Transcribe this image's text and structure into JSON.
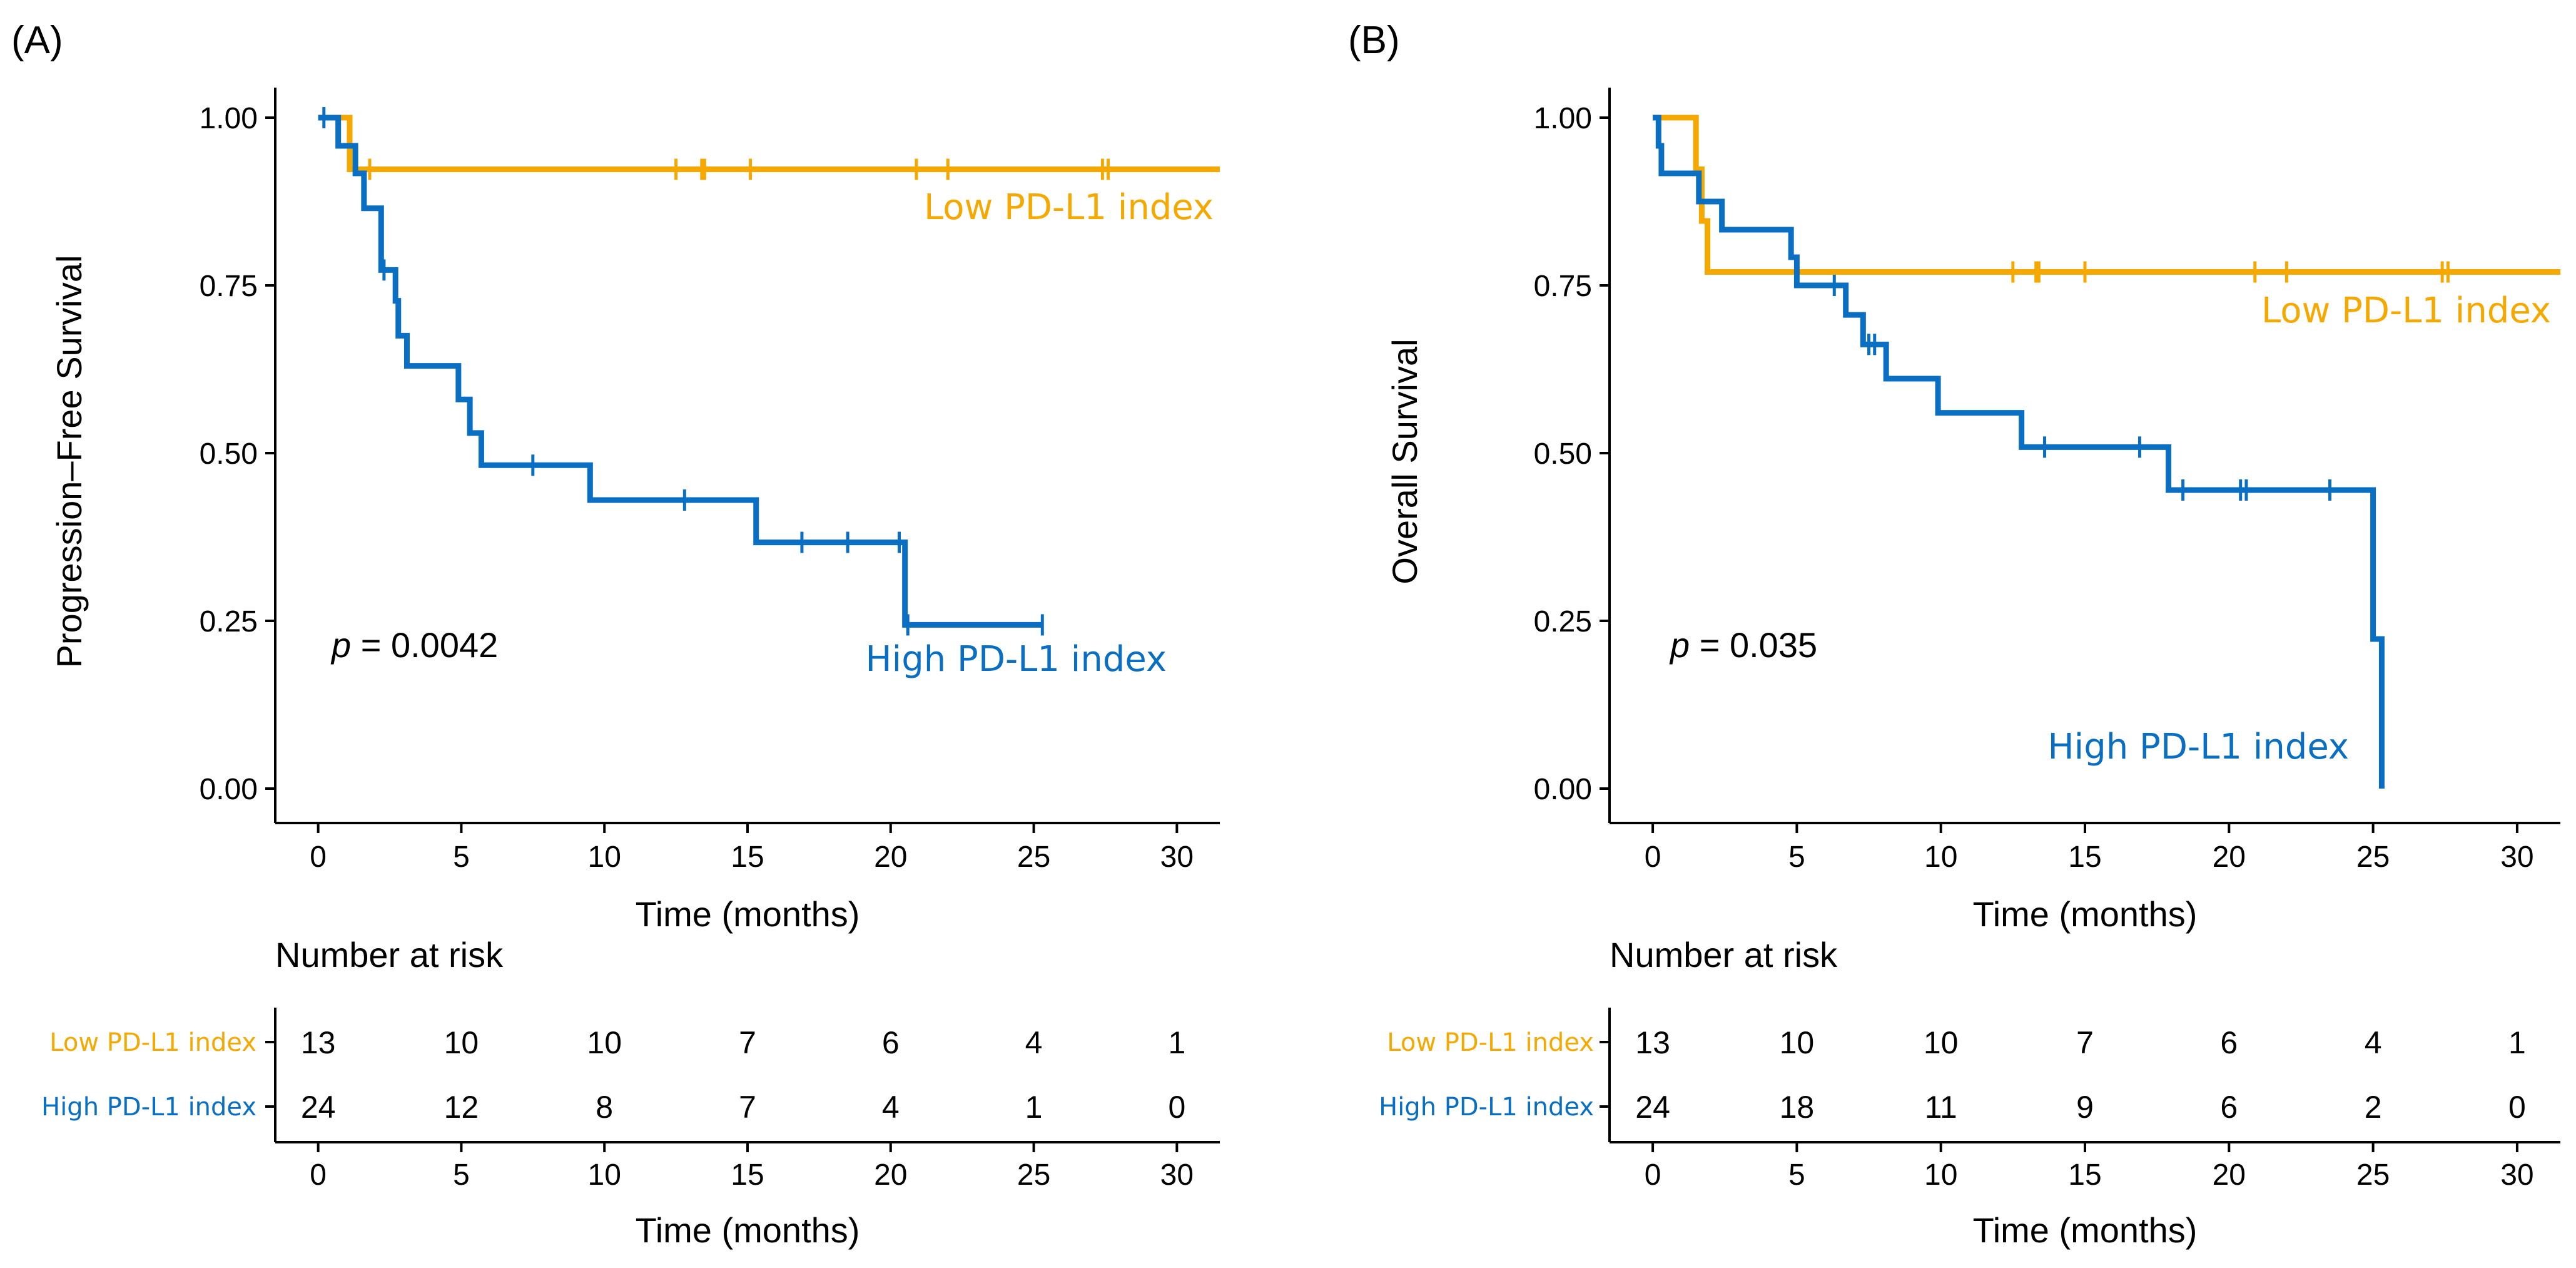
{
  "colors": {
    "low": "#F5A800",
    "high": "#0A6FC2",
    "axis": "#000000"
  },
  "chart_data": [
    {
      "type": "line",
      "subtype": "kaplan-meier",
      "panel_label": "(A)",
      "ylabel": "Progression–Free Survival",
      "xlabel": "Time (months)",
      "xlim": [
        -1.5,
        31.5
      ],
      "ylim": [
        0,
        1
      ],
      "x_ticks": [
        0,
        5,
        10,
        15,
        20,
        25,
        30
      ],
      "x_tick_labels": [
        "0",
        "5",
        "10",
        "15",
        "20",
        "25",
        "30"
      ],
      "y_ticks": [
        0,
        0.25,
        0.5,
        0.75,
        1
      ],
      "y_tick_labels": [
        "0.00",
        "0.25",
        "0.50",
        "0.75",
        "1.00"
      ],
      "p_label": "p",
      "p_value": " = 0.0042",
      "series": [
        {
          "name": "Low PD-L1 index",
          "color_key": "low",
          "steps": [
            [
              0,
              1.0
            ],
            [
              1.1,
              0.923
            ],
            [
              31.5,
              0.923
            ]
          ],
          "censor_times": [
            1.8,
            12.5,
            13.4,
            13.5,
            15.1,
            20.9,
            22.0,
            27.4,
            27.6
          ]
        },
        {
          "name": "High PD-L1 index",
          "color_key": "high",
          "steps": [
            [
              0,
              1.0
            ],
            [
              0.7,
              0.958
            ],
            [
              1.3,
              0.917
            ],
            [
              1.6,
              0.865
            ],
            [
              2.2,
              0.773
            ],
            [
              2.7,
              0.727
            ],
            [
              2.8,
              0.675
            ],
            [
              3.1,
              0.63
            ],
            [
              4.9,
              0.58
            ],
            [
              5.3,
              0.53
            ],
            [
              5.7,
              0.482
            ],
            [
              9.5,
              0.43
            ],
            [
              15.3,
              0.367
            ],
            [
              20.5,
              0.244
            ],
            [
              25.3,
              0.244
            ]
          ],
          "censor_times": [
            0.2,
            2.3,
            7.5,
            12.8,
            16.9,
            18.5,
            20.3,
            20.6,
            25.3
          ]
        }
      ],
      "annotations": [
        {
          "text": "Low PD-L1 index",
          "series": "Low PD-L1 index"
        },
        {
          "text": "High PD-L1 index",
          "series": "High PD-L1 index"
        }
      ],
      "risk_table": {
        "title": "Number at risk",
        "xlabel": "Time (months)",
        "times": [
          0,
          5,
          10,
          15,
          20,
          25,
          30
        ],
        "rows": [
          {
            "label": "Low PD-L1 index",
            "color_key": "low",
            "values": [
              "13",
              "10",
              "10",
              "7",
              "6",
              "4",
              "1"
            ]
          },
          {
            "label": "High PD-L1 index",
            "color_key": "high",
            "values": [
              "24",
              "12",
              "8",
              "7",
              "4",
              "1",
              "0"
            ]
          }
        ]
      }
    },
    {
      "type": "line",
      "subtype": "kaplan-meier",
      "panel_label": "(B)",
      "ylabel": "Overall Survival",
      "xlabel": "Time (months)",
      "xlim": [
        -1.5,
        31.5
      ],
      "ylim": [
        0,
        1
      ],
      "x_ticks": [
        0,
        5,
        10,
        15,
        20,
        25,
        30
      ],
      "x_tick_labels": [
        "0",
        "5",
        "10",
        "15",
        "20",
        "25",
        "30"
      ],
      "y_ticks": [
        0,
        0.25,
        0.5,
        0.75,
        1
      ],
      "y_tick_labels": [
        "0.00",
        "0.25",
        "0.50",
        "0.75",
        "1.00"
      ],
      "p_label": "p",
      "p_value": " = 0.035",
      "series": [
        {
          "name": "Low PD-L1 index",
          "color_key": "low",
          "steps": [
            [
              0,
              1.0
            ],
            [
              1.5,
              0.923
            ],
            [
              1.7,
              0.846
            ],
            [
              1.9,
              0.77
            ],
            [
              31.5,
              0.77
            ]
          ],
          "censor_times": [
            12.5,
            13.3,
            13.4,
            15.0,
            20.9,
            22.0,
            27.4,
            27.6
          ]
        },
        {
          "name": "High PD-L1 index",
          "color_key": "high",
          "steps": [
            [
              0,
              1.0
            ],
            [
              0.2,
              0.958
            ],
            [
              0.3,
              0.917
            ],
            [
              1.6,
              0.875
            ],
            [
              2.4,
              0.833
            ],
            [
              4.8,
              0.792
            ],
            [
              5.0,
              0.75
            ],
            [
              6.7,
              0.706
            ],
            [
              7.3,
              0.662
            ],
            [
              8.1,
              0.611
            ],
            [
              9.9,
              0.56
            ],
            [
              12.8,
              0.509
            ],
            [
              17.9,
              0.445
            ],
            [
              25.0,
              0.223
            ],
            [
              25.3,
              0.0
            ]
          ],
          "censor_times": [
            6.3,
            7.5,
            7.7,
            13.6,
            16.9,
            18.4,
            20.4,
            20.6,
            23.5
          ]
        }
      ],
      "annotations": [
        {
          "text": "Low PD-L1 index",
          "series": "Low PD-L1 index"
        },
        {
          "text": "High PD-L1 index",
          "series": "High PD-L1 index"
        }
      ],
      "risk_table": {
        "title": "Number at risk",
        "xlabel": "Time (months)",
        "times": [
          0,
          5,
          10,
          15,
          20,
          25,
          30
        ],
        "rows": [
          {
            "label": "Low PD-L1 index",
            "color_key": "low",
            "values": [
              "13",
              "10",
              "10",
              "7",
              "6",
              "4",
              "1"
            ]
          },
          {
            "label": "High PD-L1 index",
            "color_key": "high",
            "values": [
              "24",
              "18",
              "11",
              "9",
              "6",
              "2",
              "0"
            ]
          }
        ]
      }
    }
  ]
}
